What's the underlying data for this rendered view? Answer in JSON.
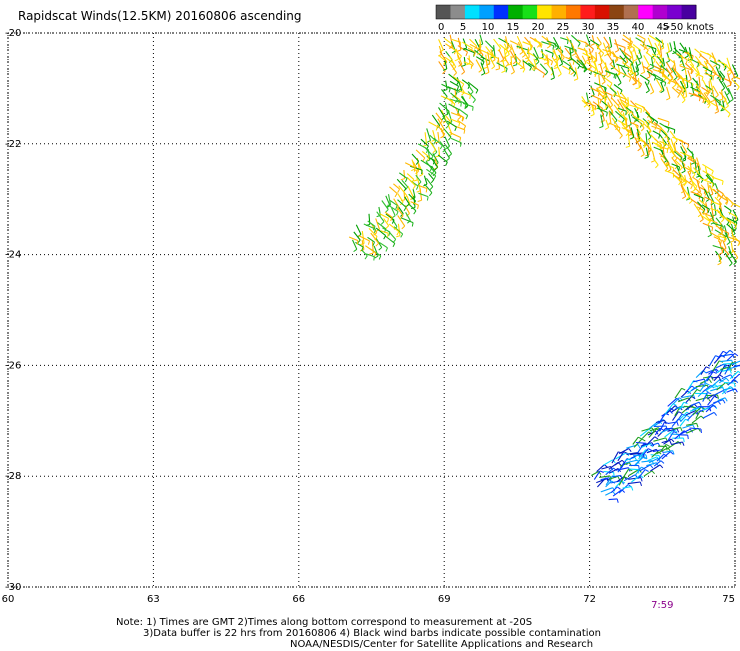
{
  "title": "Rapidscat Winds(12.5KM) 20160806 ascending",
  "legend": {
    "ticks": [
      "0",
      "5",
      "10",
      "15",
      "20",
      "25",
      "30",
      "35",
      "40",
      "45",
      ">50 knots"
    ],
    "colors": [
      "#555555",
      "#8c8c8c",
      "#00e0ff",
      "#00a0ff",
      "#0030ff",
      "#00b000",
      "#18e018",
      "#ffe400",
      "#ffb000",
      "#ff7800",
      "#ff1c1c",
      "#d81000",
      "#8b4513",
      "#b07050",
      "#ff00ff",
      "#b000d0",
      "#7a00d0",
      "#4800a0"
    ]
  },
  "map": {
    "lon_ticks": [
      "60",
      "63",
      "66",
      "69",
      "72",
      "75"
    ],
    "lat_ticks": [
      "-20",
      "-22",
      "-24",
      "-26",
      "-28",
      "-30"
    ],
    "lon_range": [
      60,
      75
    ],
    "lat_range": [
      -30,
      -20
    ],
    "time_label": "7:59",
    "time_label_lon": 73.5,
    "swaths": [
      {
        "name": "northern-band",
        "speed": "20-30",
        "path": [
          [
            68.9,
            -20.1
          ],
          [
            70,
            -20.1
          ],
          [
            71.5,
            -20.2
          ],
          [
            72.5,
            -20.3
          ],
          [
            73.5,
            -20.5
          ],
          [
            74.5,
            -20.8
          ],
          [
            75,
            -21
          ]
        ],
        "width_deg": 0.9
      },
      {
        "name": "arc-east",
        "speed": "20-30",
        "path": [
          [
            72,
            -21
          ],
          [
            73,
            -21.6
          ],
          [
            74,
            -22.4
          ],
          [
            74.6,
            -23.2
          ],
          [
            75,
            -24
          ]
        ],
        "width_deg": 0.6
      },
      {
        "name": "southwest-arm",
        "speed": "15-25",
        "path": [
          [
            69.3,
            -20.8
          ],
          [
            69,
            -21.6
          ],
          [
            68.5,
            -22.4
          ],
          [
            68,
            -23.1
          ],
          [
            67.5,
            -23.6
          ],
          [
            67.1,
            -23.9
          ]
        ],
        "width_deg": 0.5
      },
      {
        "name": "southern-band",
        "speed": "10-20",
        "path": [
          [
            72.2,
            -28.2
          ],
          [
            73,
            -27.7
          ],
          [
            74,
            -26.8
          ],
          [
            75,
            -25.9
          ]
        ],
        "width_deg": 0.6
      }
    ]
  },
  "notes": [
    "Note: 1) Times are GMT 2)Times along bottom correspond to measurement at -20S",
    "3)Data buffer is 22 hrs from 20160806 4) Black wind barbs indicate possible contamination",
    "NOAA/NESDIS/Center for Satellite Applications and Research"
  ]
}
